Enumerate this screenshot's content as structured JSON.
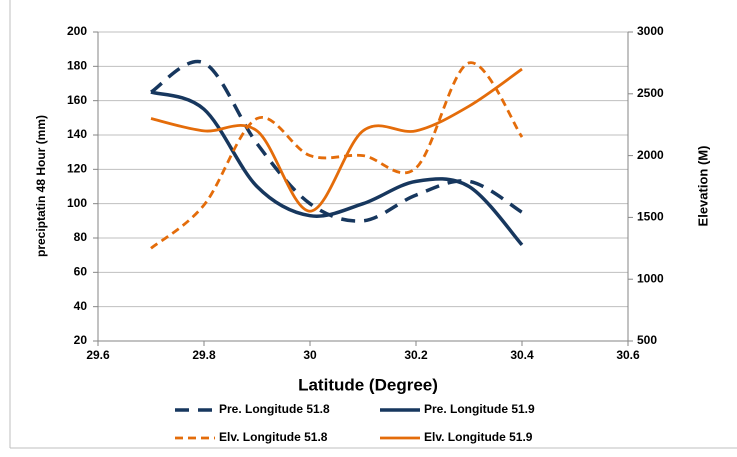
{
  "chart_data": {
    "type": "line",
    "x_label": "Latitude (Degree)",
    "y_label": "preciptatin 48 Hour (mm)",
    "y2_label": "Elevation (M)",
    "x": [
      29.7,
      29.8,
      29.9,
      30.0,
      30.1,
      30.2,
      30.3,
      30.4
    ],
    "series": [
      {
        "name": "Pre. Longitude 51.8",
        "color": "#17375e",
        "style": "dashed",
        "axis": "y",
        "values": [
          165,
          182,
          135,
          100,
          90,
          105,
          113,
          95
        ]
      },
      {
        "name": "Pre. Longitude 51.9",
        "color": "#17375e",
        "style": "solid",
        "axis": "y",
        "values": [
          165,
          155,
          110,
          93,
          100,
          113,
          110,
          76
        ]
      },
      {
        "name": "Elv. Longitude 51.8",
        "color": "#e46c0a",
        "style": "dashed",
        "axis": "y2",
        "values": [
          1250,
          1600,
          2300,
          2000,
          2000,
          1900,
          2750,
          2150
        ]
      },
      {
        "name": "Elv. Longitude 51.9",
        "color": "#e46c0a",
        "style": "solid",
        "axis": "y2",
        "values": [
          2300,
          2200,
          2200,
          1550,
          2200,
          2200,
          2400,
          2700
        ]
      }
    ],
    "xlim": [
      29.6,
      30.6
    ],
    "xticks": [
      29.6,
      29.8,
      30,
      30.2,
      30.4,
      30.6
    ],
    "ylim": [
      20,
      200
    ],
    "yticks": [
      20,
      40,
      60,
      80,
      100,
      120,
      140,
      160,
      180,
      200
    ],
    "y2lim": [
      500,
      3000
    ],
    "y2ticks": [
      500,
      1000,
      1500,
      2000,
      2500,
      3000
    ],
    "grid": true,
    "smooth": true,
    "legend": "bottom"
  }
}
